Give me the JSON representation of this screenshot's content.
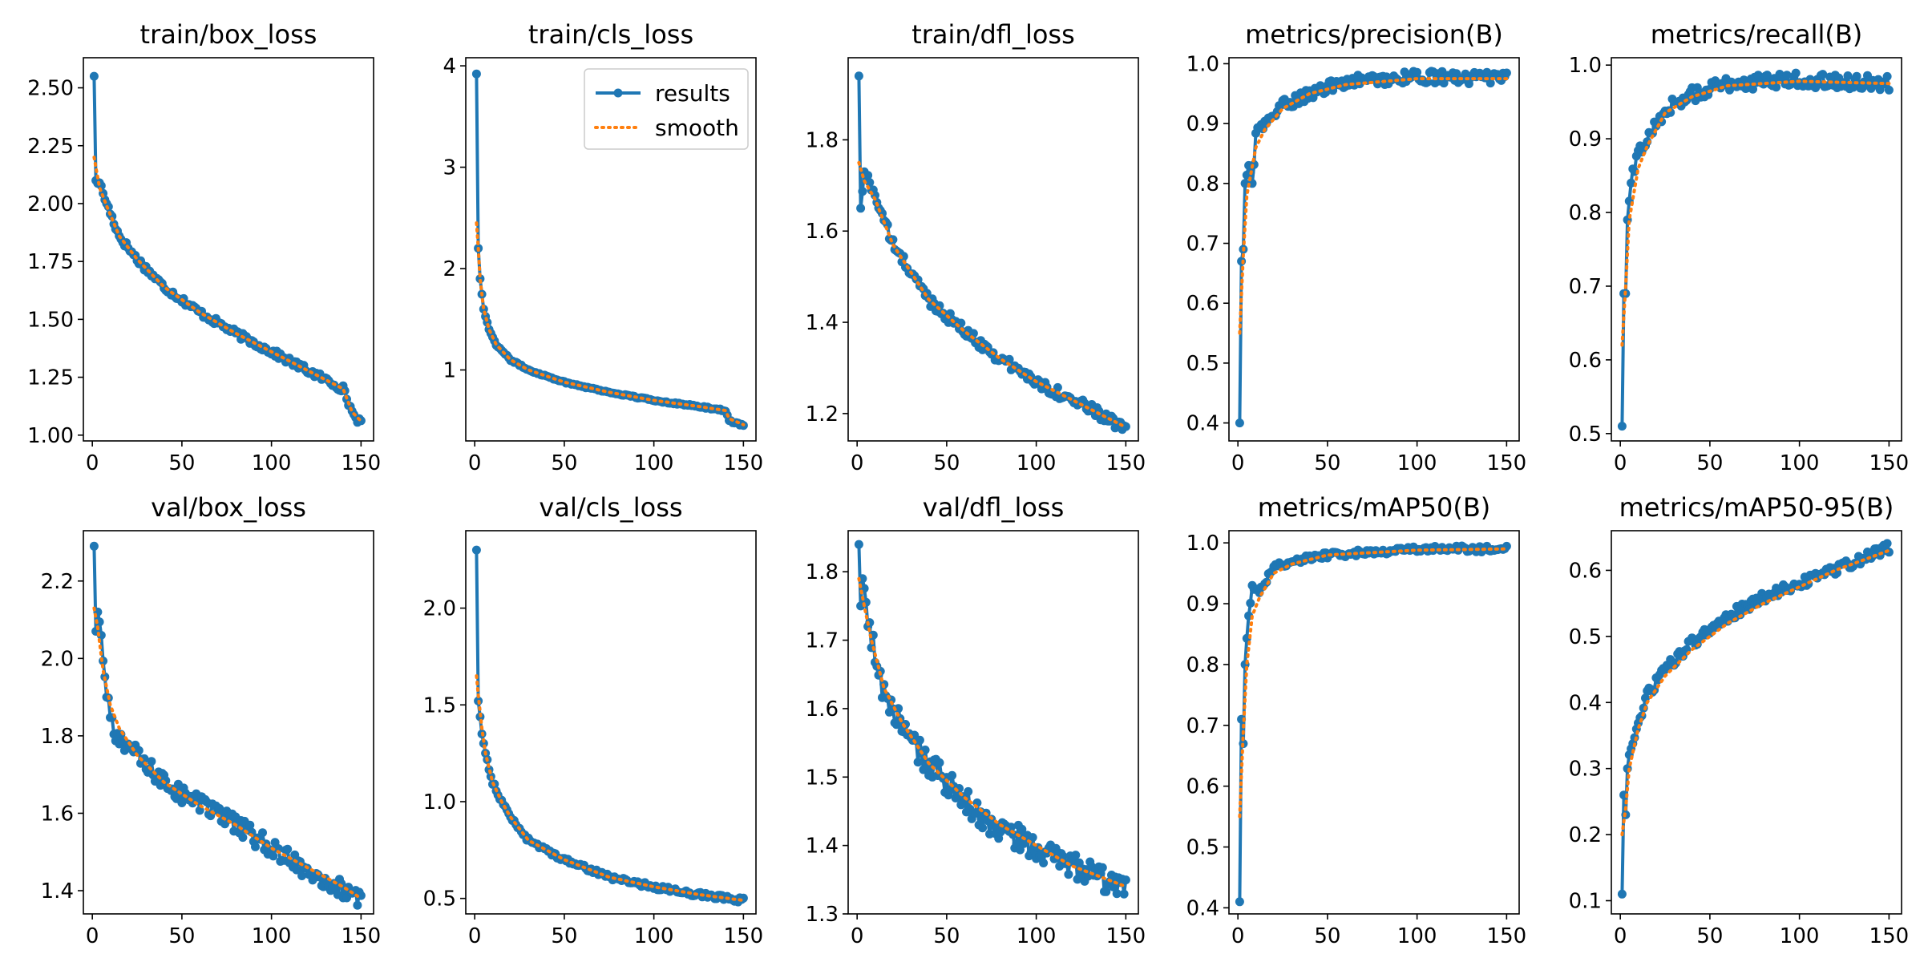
{
  "colors": {
    "results": "#1f77b4",
    "smooth": "#ff7f0e"
  },
  "legend": {
    "results_label": "results",
    "smooth_label": "smooth",
    "placement": "top-right of train/cls_loss"
  },
  "chart_data": [
    {
      "type": "line",
      "title": "train/box_loss",
      "xlim": [
        -5,
        157
      ],
      "ylim": [
        0.975,
        2.63
      ],
      "xticks": [
        0,
        50,
        100,
        150
      ],
      "xtick_labels": [
        "0",
        "50",
        "100",
        "150"
      ],
      "yticks": [
        1.0,
        1.25,
        1.5,
        1.75,
        2.0,
        2.25,
        2.5
      ],
      "ytick_labels": [
        "1.00",
        "1.25",
        "1.50",
        "1.75",
        "2.00",
        "2.25",
        "2.50"
      ],
      "anchors": [
        [
          1,
          2.55
        ],
        [
          2,
          2.1
        ],
        [
          4,
          2.09
        ],
        [
          8,
          2.0
        ],
        [
          15,
          1.86
        ],
        [
          25,
          1.76
        ],
        [
          40,
          1.64
        ],
        [
          60,
          1.53
        ],
        [
          80,
          1.44
        ],
        [
          100,
          1.36
        ],
        [
          120,
          1.28
        ],
        [
          140,
          1.2
        ],
        [
          145,
          1.1
        ],
        [
          150,
          1.05
        ]
      ],
      "noise": 0.015,
      "smooth_anchors": [
        [
          1,
          2.2
        ],
        [
          4,
          2.07
        ],
        [
          8,
          1.99
        ],
        [
          15,
          1.86
        ],
        [
          25,
          1.76
        ],
        [
          40,
          1.64
        ],
        [
          60,
          1.53
        ],
        [
          80,
          1.44
        ],
        [
          100,
          1.36
        ],
        [
          120,
          1.28
        ],
        [
          140,
          1.2
        ],
        [
          145,
          1.1
        ],
        [
          150,
          1.06
        ]
      ]
    },
    {
      "type": "line",
      "title": "train/cls_loss",
      "xlim": [
        -5,
        157
      ],
      "ylim": [
        0.3,
        4.08
      ],
      "xticks": [
        0,
        50,
        100,
        150
      ],
      "xtick_labels": [
        "0",
        "50",
        "100",
        "150"
      ],
      "yticks": [
        1,
        2,
        3,
        4
      ],
      "ytick_labels": [
        "1",
        "2",
        "3",
        "4"
      ],
      "anchors": [
        [
          1,
          3.92
        ],
        [
          2,
          2.2
        ],
        [
          3,
          1.9
        ],
        [
          5,
          1.6
        ],
        [
          8,
          1.4
        ],
        [
          12,
          1.25
        ],
        [
          20,
          1.1
        ],
        [
          30,
          1.0
        ],
        [
          50,
          0.88
        ],
        [
          75,
          0.78
        ],
        [
          100,
          0.7
        ],
        [
          125,
          0.64
        ],
        [
          140,
          0.6
        ],
        [
          142,
          0.5
        ],
        [
          150,
          0.45
        ]
      ],
      "noise": 0.008,
      "smooth_anchors": [
        [
          1,
          2.45
        ],
        [
          2,
          2.2
        ],
        [
          3,
          1.9
        ],
        [
          5,
          1.6
        ],
        [
          8,
          1.4
        ],
        [
          12,
          1.25
        ],
        [
          20,
          1.1
        ],
        [
          30,
          1.0
        ],
        [
          50,
          0.88
        ],
        [
          75,
          0.78
        ],
        [
          100,
          0.7
        ],
        [
          125,
          0.64
        ],
        [
          140,
          0.6
        ],
        [
          142,
          0.52
        ],
        [
          150,
          0.46
        ]
      ]
    },
    {
      "type": "line",
      "title": "train/dfl_loss",
      "xlim": [
        -5,
        157
      ],
      "ylim": [
        1.14,
        1.98
      ],
      "xticks": [
        0,
        50,
        100,
        150
      ],
      "xtick_labels": [
        "0",
        "50",
        "100",
        "150"
      ],
      "yticks": [
        1.2,
        1.4,
        1.6,
        1.8
      ],
      "ytick_labels": [
        "1.2",
        "1.4",
        "1.6",
        "1.8"
      ],
      "anchors": [
        [
          1,
          1.94
        ],
        [
          2,
          1.65
        ],
        [
          4,
          1.73
        ],
        [
          10,
          1.68
        ],
        [
          20,
          1.57
        ],
        [
          40,
          1.45
        ],
        [
          60,
          1.38
        ],
        [
          80,
          1.32
        ],
        [
          100,
          1.27
        ],
        [
          120,
          1.23
        ],
        [
          140,
          1.19
        ],
        [
          150,
          1.16
        ]
      ],
      "noise": 0.012,
      "smooth_anchors": [
        [
          1,
          1.75
        ],
        [
          4,
          1.71
        ],
        [
          10,
          1.67
        ],
        [
          20,
          1.57
        ],
        [
          40,
          1.45
        ],
        [
          60,
          1.38
        ],
        [
          80,
          1.32
        ],
        [
          100,
          1.27
        ],
        [
          120,
          1.23
        ],
        [
          140,
          1.19
        ],
        [
          150,
          1.17
        ]
      ]
    },
    {
      "type": "line",
      "title": "metrics/precision(B)",
      "xlim": [
        -5,
        157
      ],
      "ylim": [
        0.37,
        1.01
      ],
      "xticks": [
        0,
        50,
        100,
        150
      ],
      "xtick_labels": [
        "0",
        "50",
        "100",
        "150"
      ],
      "yticks": [
        0.4,
        0.5,
        0.6,
        0.7,
        0.8,
        0.9,
        1.0
      ],
      "ytick_labels": [
        "0.4",
        "0.5",
        "0.6",
        "0.7",
        "0.8",
        "0.9",
        "1.0"
      ],
      "anchors": [
        [
          1,
          0.4
        ],
        [
          2,
          0.67
        ],
        [
          3,
          0.69
        ],
        [
          4,
          0.8
        ],
        [
          6,
          0.83
        ],
        [
          8,
          0.8
        ],
        [
          10,
          0.88
        ],
        [
          15,
          0.9
        ],
        [
          25,
          0.93
        ],
        [
          40,
          0.95
        ],
        [
          60,
          0.97
        ],
        [
          100,
          0.978
        ],
        [
          150,
          0.975
        ]
      ],
      "noise": 0.01,
      "smooth_anchors": [
        [
          1,
          0.55
        ],
        [
          3,
          0.68
        ],
        [
          5,
          0.78
        ],
        [
          10,
          0.86
        ],
        [
          15,
          0.89
        ],
        [
          25,
          0.925
        ],
        [
          40,
          0.95
        ],
        [
          60,
          0.965
        ],
        [
          100,
          0.975
        ],
        [
          150,
          0.975
        ]
      ]
    },
    {
      "type": "line",
      "title": "metrics/recall(B)",
      "xlim": [
        -5,
        157
      ],
      "ylim": [
        0.49,
        1.01
      ],
      "xticks": [
        0,
        50,
        100,
        150
      ],
      "xtick_labels": [
        "0",
        "50",
        "100",
        "150"
      ],
      "yticks": [
        0.5,
        0.6,
        0.7,
        0.8,
        0.9,
        1.0
      ],
      "ytick_labels": [
        "0.5",
        "0.6",
        "0.7",
        "0.8",
        "0.9",
        "1.0"
      ],
      "anchors": [
        [
          1,
          0.51
        ],
        [
          2,
          0.69
        ],
        [
          3,
          0.69
        ],
        [
          4,
          0.79
        ],
        [
          6,
          0.84
        ],
        [
          10,
          0.88
        ],
        [
          15,
          0.9
        ],
        [
          25,
          0.94
        ],
        [
          40,
          0.96
        ],
        [
          60,
          0.975
        ],
        [
          100,
          0.98
        ],
        [
          150,
          0.975
        ]
      ],
      "noise": 0.01,
      "smooth_anchors": [
        [
          1,
          0.62
        ],
        [
          3,
          0.7
        ],
        [
          5,
          0.79
        ],
        [
          10,
          0.86
        ],
        [
          15,
          0.89
        ],
        [
          25,
          0.935
        ],
        [
          40,
          0.957
        ],
        [
          60,
          0.972
        ],
        [
          100,
          0.978
        ],
        [
          150,
          0.975
        ]
      ]
    },
    {
      "type": "line",
      "title": "val/box_loss",
      "xlim": [
        -5,
        157
      ],
      "ylim": [
        1.34,
        2.33
      ],
      "xticks": [
        0,
        50,
        100,
        150
      ],
      "xtick_labels": [
        "0",
        "50",
        "100",
        "150"
      ],
      "yticks": [
        1.4,
        1.6,
        1.8,
        2.0,
        2.2
      ],
      "ytick_labels": [
        "1.4",
        "1.6",
        "1.8",
        "2.0",
        "2.2"
      ],
      "anchors": [
        [
          1,
          2.29
        ],
        [
          2,
          2.07
        ],
        [
          3,
          2.12
        ],
        [
          5,
          2.06
        ],
        [
          8,
          1.9
        ],
        [
          12,
          1.8
        ],
        [
          20,
          1.78
        ],
        [
          30,
          1.72
        ],
        [
          50,
          1.65
        ],
        [
          70,
          1.6
        ],
        [
          90,
          1.54
        ],
        [
          110,
          1.48
        ],
        [
          130,
          1.43
        ],
        [
          150,
          1.37
        ]
      ],
      "noise": 0.025,
      "smooth_anchors": [
        [
          1,
          2.13
        ],
        [
          3,
          2.08
        ],
        [
          6,
          1.97
        ],
        [
          10,
          1.88
        ],
        [
          15,
          1.82
        ],
        [
          25,
          1.75
        ],
        [
          40,
          1.68
        ],
        [
          60,
          1.62
        ],
        [
          80,
          1.57
        ],
        [
          100,
          1.51
        ],
        [
          120,
          1.46
        ],
        [
          140,
          1.41
        ],
        [
          150,
          1.38
        ]
      ]
    },
    {
      "type": "line",
      "title": "val/cls_loss",
      "xlim": [
        -5,
        157
      ],
      "ylim": [
        0.42,
        2.4
      ],
      "xticks": [
        0,
        50,
        100,
        150
      ],
      "xtick_labels": [
        "0",
        "50",
        "100",
        "150"
      ],
      "yticks": [
        0.5,
        1.0,
        1.5,
        2.0
      ],
      "ytick_labels": [
        "0.5",
        "1.0",
        "1.5",
        "2.0"
      ],
      "anchors": [
        [
          1,
          2.3
        ],
        [
          2,
          1.52
        ],
        [
          4,
          1.35
        ],
        [
          6,
          1.25
        ],
        [
          10,
          1.1
        ],
        [
          15,
          1.0
        ],
        [
          20,
          0.92
        ],
        [
          30,
          0.8
        ],
        [
          50,
          0.7
        ],
        [
          75,
          0.61
        ],
        [
          100,
          0.56
        ],
        [
          125,
          0.52
        ],
        [
          150,
          0.49
        ]
      ],
      "noise": 0.012,
      "smooth_anchors": [
        [
          1,
          1.65
        ],
        [
          2,
          1.55
        ],
        [
          4,
          1.38
        ],
        [
          6,
          1.25
        ],
        [
          10,
          1.1
        ],
        [
          15,
          1.0
        ],
        [
          20,
          0.92
        ],
        [
          30,
          0.8
        ],
        [
          50,
          0.7
        ],
        [
          75,
          0.61
        ],
        [
          100,
          0.56
        ],
        [
          125,
          0.52
        ],
        [
          150,
          0.49
        ]
      ]
    },
    {
      "type": "line",
      "title": "val/dfl_loss",
      "xlim": [
        -5,
        157
      ],
      "ylim": [
        1.3,
        1.86
      ],
      "xticks": [
        0,
        50,
        100,
        150
      ],
      "xtick_labels": [
        "0",
        "50",
        "100",
        "150"
      ],
      "yticks": [
        1.3,
        1.4,
        1.5,
        1.6,
        1.7,
        1.8
      ],
      "ytick_labels": [
        "1.3",
        "1.4",
        "1.5",
        "1.6",
        "1.7",
        "1.8"
      ],
      "anchors": [
        [
          1,
          1.84
        ],
        [
          2,
          1.75
        ],
        [
          3,
          1.79
        ],
        [
          6,
          1.72
        ],
        [
          10,
          1.68
        ],
        [
          15,
          1.62
        ],
        [
          20,
          1.6
        ],
        [
          30,
          1.55
        ],
        [
          50,
          1.49
        ],
        [
          70,
          1.44
        ],
        [
          90,
          1.41
        ],
        [
          110,
          1.38
        ],
        [
          130,
          1.36
        ],
        [
          150,
          1.33
        ]
      ],
      "noise": 0.02,
      "smooth_anchors": [
        [
          1,
          1.79
        ],
        [
          4,
          1.75
        ],
        [
          8,
          1.7
        ],
        [
          15,
          1.63
        ],
        [
          25,
          1.58
        ],
        [
          40,
          1.52
        ],
        [
          60,
          1.47
        ],
        [
          80,
          1.43
        ],
        [
          100,
          1.4
        ],
        [
          120,
          1.37
        ],
        [
          140,
          1.35
        ],
        [
          150,
          1.34
        ]
      ]
    },
    {
      "type": "line",
      "title": "metrics/mAP50(B)",
      "xlim": [
        -5,
        157
      ],
      "ylim": [
        0.39,
        1.02
      ],
      "xticks": [
        0,
        50,
        100,
        150
      ],
      "xtick_labels": [
        "0",
        "50",
        "100",
        "150"
      ],
      "yticks": [
        0.4,
        0.5,
        0.6,
        0.7,
        0.8,
        0.9,
        1.0
      ],
      "ytick_labels": [
        "0.4",
        "0.5",
        "0.6",
        "0.7",
        "0.8",
        "0.9",
        "1.0"
      ],
      "anchors": [
        [
          1,
          0.41
        ],
        [
          2,
          0.71
        ],
        [
          3,
          0.67
        ],
        [
          4,
          0.8
        ],
        [
          6,
          0.88
        ],
        [
          8,
          0.93
        ],
        [
          12,
          0.92
        ],
        [
          20,
          0.96
        ],
        [
          30,
          0.97
        ],
        [
          50,
          0.98
        ],
        [
          100,
          0.99
        ],
        [
          150,
          0.99
        ]
      ],
      "noise": 0.005,
      "smooth_anchors": [
        [
          1,
          0.55
        ],
        [
          3,
          0.69
        ],
        [
          5,
          0.8
        ],
        [
          8,
          0.88
        ],
        [
          12,
          0.91
        ],
        [
          20,
          0.95
        ],
        [
          30,
          0.965
        ],
        [
          50,
          0.98
        ],
        [
          100,
          0.988
        ],
        [
          150,
          0.99
        ]
      ]
    },
    {
      "type": "line",
      "title": "metrics/mAP50-95(B)",
      "xlim": [
        -5,
        157
      ],
      "ylim": [
        0.08,
        0.66
      ],
      "xticks": [
        0,
        50,
        100,
        150
      ],
      "xtick_labels": [
        "0",
        "50",
        "100",
        "150"
      ],
      "yticks": [
        0.1,
        0.2,
        0.3,
        0.4,
        0.5,
        0.6
      ],
      "ytick_labels": [
        "0.1",
        "0.2",
        "0.3",
        "0.4",
        "0.5",
        "0.6"
      ],
      "anchors": [
        [
          1,
          0.11
        ],
        [
          2,
          0.26
        ],
        [
          3,
          0.23
        ],
        [
          4,
          0.3
        ],
        [
          6,
          0.33
        ],
        [
          10,
          0.37
        ],
        [
          15,
          0.41
        ],
        [
          25,
          0.45
        ],
        [
          40,
          0.49
        ],
        [
          60,
          0.53
        ],
        [
          80,
          0.56
        ],
        [
          100,
          0.58
        ],
        [
          120,
          0.6
        ],
        [
          150,
          0.635
        ]
      ],
      "noise": 0.008,
      "smooth_anchors": [
        [
          1,
          0.2
        ],
        [
          3,
          0.24
        ],
        [
          5,
          0.3
        ],
        [
          10,
          0.36
        ],
        [
          15,
          0.4
        ],
        [
          25,
          0.44
        ],
        [
          40,
          0.48
        ],
        [
          60,
          0.52
        ],
        [
          80,
          0.55
        ],
        [
          100,
          0.575
        ],
        [
          120,
          0.6
        ],
        [
          150,
          0.63
        ]
      ]
    }
  ]
}
